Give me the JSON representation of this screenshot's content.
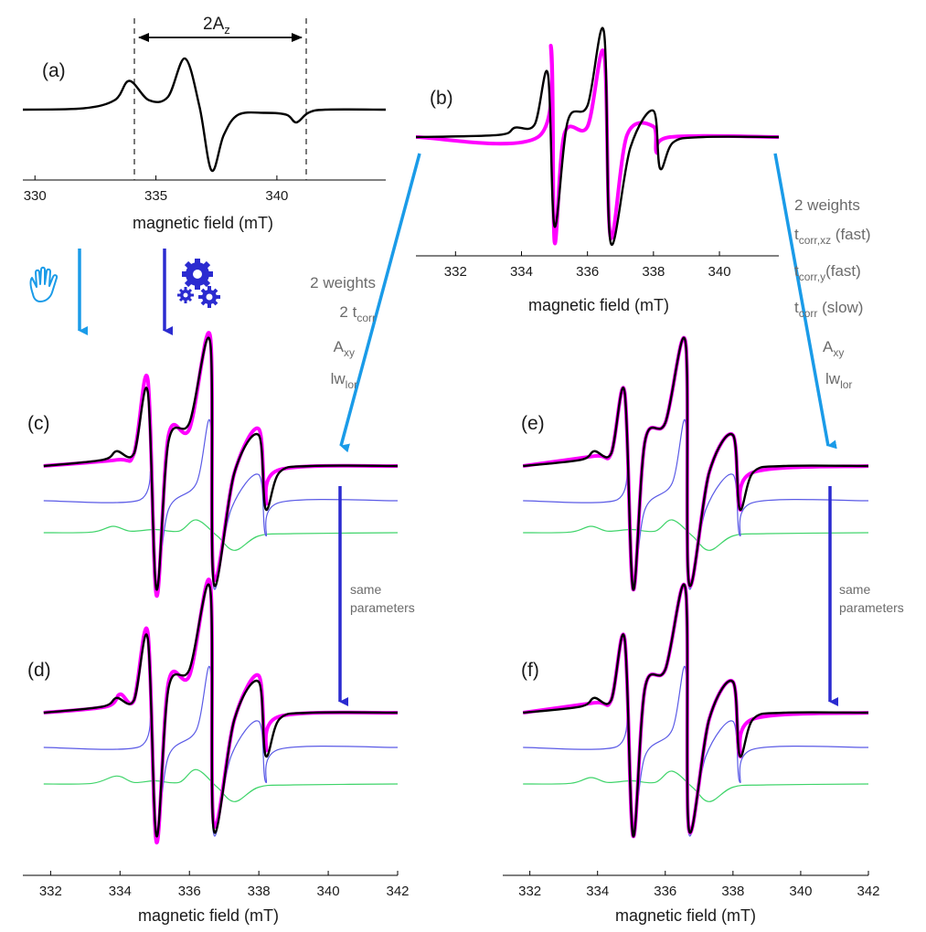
{
  "colors": {
    "experiment": "#000000",
    "simulation": "#ff00ff",
    "component_fast": "#5a5ae6",
    "component_slow": "#3fd46a",
    "arrow_light": "#1a9be8",
    "arrow_dark": "#2b2bd0",
    "text_gray": "#6b6b6b"
  },
  "icons": {
    "hand": "hand-icon",
    "gears": "gears-icon"
  },
  "annotation_2az": {
    "text": "2A",
    "sub": "z"
  },
  "left_list": [
    {
      "t": "2 weights",
      "s": ""
    },
    {
      "t": "2 t",
      "s": "corr"
    },
    {
      "t": "A",
      "s": "xy"
    },
    {
      "t": "lw",
      "s": "lor"
    }
  ],
  "right_list": [
    {
      "t": "2 weights",
      "s": "",
      "r": ""
    },
    {
      "t": "t",
      "s": "corr,xz",
      "r": " (fast)"
    },
    {
      "t": "t",
      "s": "corr,y",
      "r": "(fast)"
    },
    {
      "t": "t",
      "s": "corr",
      "r": " (slow)"
    },
    {
      "t": "A",
      "s": "xy",
      "r": ""
    },
    {
      "t": "lw",
      "s": "lor",
      "r": ""
    }
  ],
  "same_params_1": "same",
  "same_params_2": "parameters",
  "chart_data": [
    {
      "panel": "(a)",
      "type": "line",
      "xlabel": "magnetic field (mT)",
      "ylabel": "",
      "xlim": [
        329.5,
        344.5
      ],
      "xticks": [
        330,
        335,
        340
      ],
      "series": [
        {
          "role": "experiment",
          "x": [
            329.5,
            332,
            333.3,
            333.9,
            334.7,
            335.5,
            336.2,
            336.8,
            337.3,
            337.8,
            338.4,
            339.5,
            340.4,
            340.8,
            341.3,
            342,
            344.5
          ],
          "y": [
            0,
            0.02,
            0.15,
            0.45,
            0.15,
            0.2,
            0.8,
            0.05,
            -0.95,
            -0.4,
            -0.08,
            -0.05,
            -0.08,
            -0.2,
            -0.05,
            0,
            0
          ]
        }
      ]
    },
    {
      "panel": "(b)",
      "type": "line",
      "xlabel": "magnetic field (mT)",
      "ylabel": "",
      "xlim": [
        330.8,
        341.8
      ],
      "xticks": [
        332,
        334,
        336,
        338,
        340
      ],
      "series": [
        {
          "role": "experiment",
          "x": [
            330.8,
            333.3,
            333.8,
            334.4,
            334.8,
            335.0,
            335.4,
            336.0,
            336.5,
            336.7,
            337.3,
            338.0,
            338.2,
            338.6,
            339.5,
            341.8
          ],
          "y": [
            0,
            0.02,
            0.09,
            0.12,
            0.6,
            -0.85,
            0.15,
            0.3,
            1.0,
            -1.0,
            -0.1,
            0.25,
            -0.3,
            -0.05,
            0,
            0
          ]
        },
        {
          "role": "simulation",
          "x": [
            330.8,
            334.5,
            334.9,
            335.0,
            335.3,
            336.0,
            336.5,
            336.7,
            337.2,
            338.0,
            338.1,
            338.5,
            341.8
          ],
          "y": [
            0,
            0,
            0.85,
            -1.0,
            0.03,
            0.1,
            0.8,
            -0.95,
            0.02,
            0.1,
            -0.15,
            0,
            0
          ]
        }
      ]
    },
    {
      "panel": "(c)",
      "type": "line",
      "series": [
        {
          "role": "experiment",
          "x": [
            331.8,
            333.5,
            333.9,
            334.4,
            334.8,
            335.05,
            335.4,
            336.0,
            336.6,
            336.7,
            337.3,
            338.0,
            338.2,
            338.6,
            339.5,
            342
          ],
          "y": [
            0,
            0.05,
            0.12,
            0.1,
            0.6,
            -1.0,
            0.2,
            0.35,
            1.0,
            -0.95,
            -0.05,
            0.25,
            -0.35,
            -0.05,
            0,
            0
          ]
        },
        {
          "role": "simulation",
          "x": [
            331.8,
            333.9,
            334.4,
            334.8,
            335.05,
            335.4,
            336.0,
            336.6,
            336.7,
            337.3,
            338.0,
            338.2,
            338.6,
            342
          ],
          "y": [
            0,
            0.05,
            0.1,
            0.7,
            -1.05,
            0.25,
            0.3,
            1.05,
            -0.9,
            -0.05,
            0.3,
            -0.3,
            -0.03,
            0
          ]
        },
        {
          "role": "component_fast",
          "x": [
            331.8,
            334.5,
            334.9,
            335.05,
            335.4,
            336.2,
            336.6,
            336.7,
            337.2,
            338.0,
            338.2,
            338.6,
            342
          ],
          "y": [
            0,
            0,
            0.3,
            -1.0,
            -0.1,
            0.2,
            0.9,
            -1.0,
            -0.1,
            0.3,
            -0.4,
            -0.02,
            0
          ]
        },
        {
          "role": "component_slow",
          "x": [
            331.8,
            333.2,
            333.8,
            334.3,
            335.0,
            335.7,
            336.2,
            336.8,
            337.3,
            338.0,
            339.0,
            342
          ],
          "y": [
            0,
            0.02,
            0.2,
            0.05,
            0.1,
            0.05,
            0.4,
            -0.1,
            -0.55,
            -0.1,
            -0.03,
            0
          ]
        }
      ]
    },
    {
      "panel": "(d)",
      "type": "line",
      "xlabel": "magnetic field (mT)",
      "ylabel": "",
      "xlim": [
        331.2,
        342
      ],
      "xticks": [
        332,
        334,
        336,
        338,
        340,
        342
      ],
      "series": [
        {
          "role": "experiment",
          "x": [
            331.8,
            333.5,
            333.9,
            334.4,
            334.8,
            335.05,
            335.4,
            336.0,
            336.6,
            336.7,
            337.3,
            338.0,
            338.2,
            338.6,
            339.5,
            342
          ],
          "y": [
            0,
            0.05,
            0.12,
            0.1,
            0.6,
            -1.0,
            0.2,
            0.35,
            1.0,
            -0.95,
            -0.05,
            0.25,
            -0.35,
            -0.05,
            0,
            0
          ]
        },
        {
          "role": "simulation",
          "x": [
            331.8,
            333.6,
            334.0,
            334.4,
            334.8,
            335.05,
            335.4,
            336.0,
            336.6,
            336.7,
            337.3,
            338.0,
            338.2,
            338.6,
            342
          ],
          "y": [
            0,
            0.05,
            0.15,
            0.1,
            0.65,
            -1.05,
            0.25,
            0.3,
            1.05,
            -0.9,
            -0.05,
            0.3,
            -0.3,
            -0.03,
            0
          ]
        },
        {
          "role": "component_fast",
          "x": [
            331.8,
            334.5,
            334.9,
            335.05,
            335.4,
            336.2,
            336.6,
            336.7,
            337.2,
            338.0,
            338.2,
            338.6,
            342
          ],
          "y": [
            0,
            0,
            0.3,
            -1.0,
            -0.1,
            0.2,
            0.9,
            -1.0,
            -0.1,
            0.3,
            -0.4,
            -0.02,
            0
          ]
        },
        {
          "role": "component_slow",
          "x": [
            331.8,
            333.2,
            333.9,
            334.4,
            335.0,
            335.7,
            336.2,
            336.8,
            337.3,
            338.0,
            339.0,
            342
          ],
          "y": [
            0,
            0.02,
            0.25,
            0.05,
            0.1,
            0.05,
            0.45,
            -0.1,
            -0.55,
            -0.1,
            -0.03,
            0
          ]
        }
      ]
    },
    {
      "panel": "(e)",
      "type": "line",
      "series": [
        {
          "role": "experiment",
          "x": [
            331.8,
            333.5,
            333.9,
            334.4,
            334.8,
            335.05,
            335.4,
            336.0,
            336.6,
            336.7,
            337.3,
            338.0,
            338.2,
            338.6,
            339.5,
            342
          ],
          "y": [
            0,
            0.05,
            0.12,
            0.1,
            0.6,
            -1.0,
            0.2,
            0.35,
            1.0,
            -0.95,
            -0.05,
            0.25,
            -0.35,
            -0.05,
            0,
            0
          ]
        },
        {
          "role": "simulation",
          "x": [
            331.8,
            333.9,
            334.4,
            334.8,
            335.05,
            335.4,
            336.0,
            336.6,
            336.7,
            337.3,
            338.0,
            338.2,
            338.6,
            342
          ],
          "y": [
            0,
            0.08,
            0.1,
            0.6,
            -1.0,
            0.2,
            0.35,
            1.0,
            -0.95,
            -0.05,
            0.25,
            -0.35,
            -0.05,
            0
          ]
        },
        {
          "role": "component_fast",
          "x": [
            331.8,
            334.5,
            334.9,
            335.05,
            335.4,
            336.2,
            336.6,
            336.7,
            337.2,
            338.0,
            338.2,
            338.6,
            342
          ],
          "y": [
            0,
            0,
            0.3,
            -1.0,
            -0.1,
            0.2,
            0.9,
            -1.0,
            -0.1,
            0.3,
            -0.4,
            -0.02,
            0
          ]
        },
        {
          "role": "component_slow",
          "x": [
            331.8,
            333.2,
            333.8,
            334.3,
            335.0,
            335.7,
            336.2,
            336.8,
            337.3,
            338.0,
            339.0,
            342
          ],
          "y": [
            0,
            0.02,
            0.2,
            0.05,
            0.1,
            0.05,
            0.4,
            -0.1,
            -0.55,
            -0.1,
            -0.03,
            0
          ]
        }
      ]
    },
    {
      "panel": "(f)",
      "type": "line",
      "xlabel": "magnetic field (mT)",
      "ylabel": "",
      "xlim": [
        331.2,
        342
      ],
      "xticks": [
        332,
        334,
        336,
        338,
        340,
        342
      ],
      "series": [
        {
          "role": "experiment",
          "x": [
            331.8,
            333.5,
            333.9,
            334.4,
            334.8,
            335.05,
            335.4,
            336.0,
            336.6,
            336.7,
            337.3,
            338.0,
            338.2,
            338.6,
            339.5,
            342
          ],
          "y": [
            0,
            0.05,
            0.12,
            0.1,
            0.6,
            -1.0,
            0.2,
            0.35,
            1.0,
            -0.95,
            -0.05,
            0.25,
            -0.35,
            -0.05,
            0,
            0
          ]
        },
        {
          "role": "simulation",
          "x": [
            331.8,
            333.9,
            334.4,
            334.8,
            335.05,
            335.4,
            336.0,
            336.6,
            336.7,
            337.3,
            338.0,
            338.2,
            338.6,
            342
          ],
          "y": [
            0,
            0.08,
            0.1,
            0.6,
            -1.0,
            0.2,
            0.35,
            1.0,
            -0.95,
            -0.05,
            0.25,
            -0.35,
            -0.05,
            0
          ]
        },
        {
          "role": "component_fast",
          "x": [
            331.8,
            334.5,
            334.9,
            335.05,
            335.4,
            336.2,
            336.6,
            336.7,
            337.2,
            338.0,
            338.2,
            338.6,
            342
          ],
          "y": [
            0,
            0,
            0.3,
            -1.0,
            -0.1,
            0.2,
            0.9,
            -1.0,
            -0.1,
            0.3,
            -0.4,
            -0.02,
            0
          ]
        },
        {
          "role": "component_slow",
          "x": [
            331.8,
            333.2,
            333.8,
            334.3,
            335.0,
            335.7,
            336.2,
            336.8,
            337.3,
            338.0,
            339.0,
            342
          ],
          "y": [
            0,
            0.02,
            0.2,
            0.05,
            0.1,
            0.05,
            0.4,
            -0.1,
            -0.55,
            -0.1,
            -0.03,
            0
          ]
        }
      ]
    }
  ]
}
